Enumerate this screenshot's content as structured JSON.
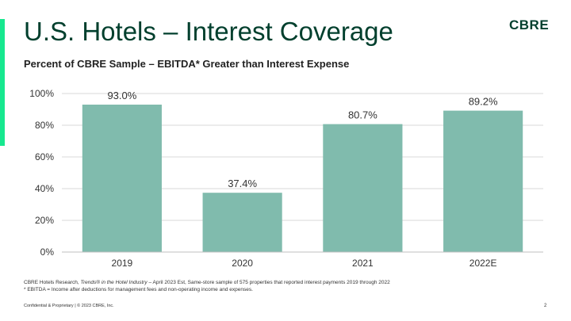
{
  "slide": {
    "title": "U.S. Hotels – Interest Coverage",
    "logo_text": "CBRE",
    "subtitle": "Percent of CBRE Sample – EBITDA* Greater than Interest Expense",
    "footer_source_prefix": "CBRE Hotels Research, ",
    "footer_source_italic": "Trends® in the Hotel Industry",
    "footer_source_suffix": " – April 2023 Est, Same-store sample of 575 properties that reported interest payments 2019 through 2022",
    "footer_note": "* EBITDA = Income after deductions for management fees and non-operating income and expenses.",
    "confidential": "Confidential & Proprietary | © 2023 CBRE, Inc.",
    "page_number": "2"
  },
  "colors": {
    "accent": "#17e88f",
    "title": "#003f2d",
    "bar": "#80bbad",
    "grid": "#d9d9d9",
    "axis_text": "#333333"
  },
  "chart_data": {
    "type": "bar",
    "categories": [
      "2019",
      "2020",
      "2021",
      "2022E"
    ],
    "values": [
      93.0,
      37.4,
      80.7,
      89.2
    ],
    "value_labels": [
      "93.0%",
      "37.4%",
      "80.7%",
      "89.2%"
    ],
    "y_ticks": [
      0,
      20,
      40,
      60,
      80,
      100
    ],
    "y_tick_labels": [
      "0%",
      "20%",
      "40%",
      "60%",
      "80%",
      "100%"
    ],
    "ylim": [
      0,
      100
    ],
    "grid": true,
    "legend": false
  }
}
